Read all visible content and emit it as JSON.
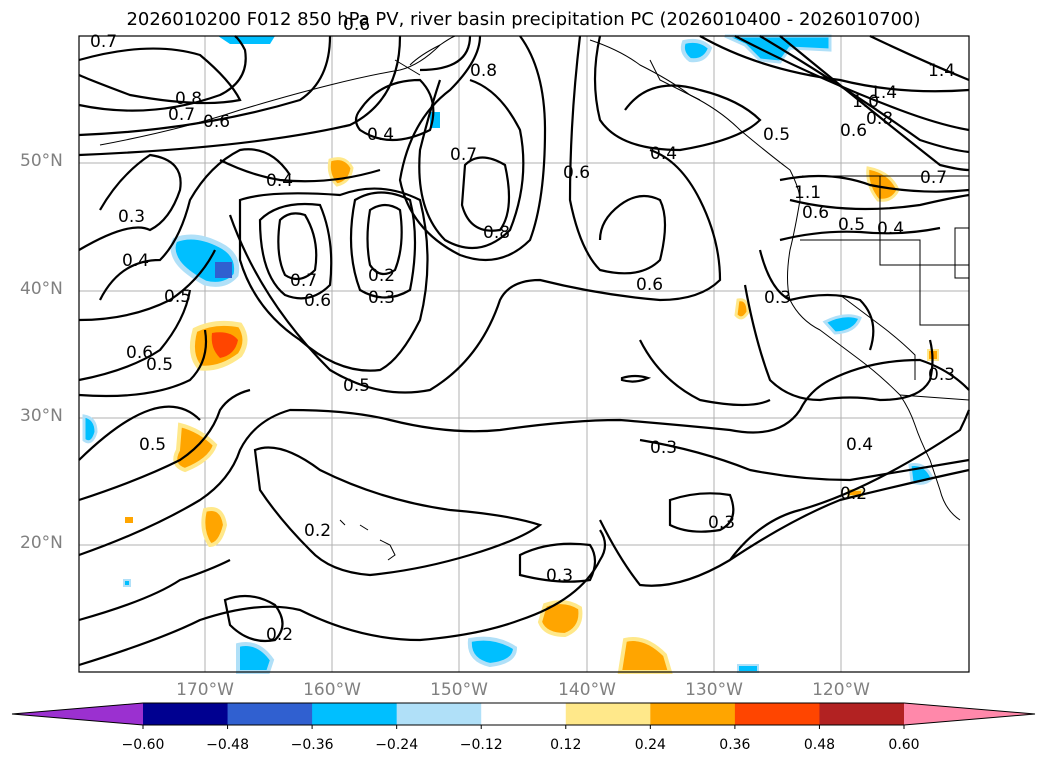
{
  "title": "2026010200 F012 850 hPa PV, river basin precipitation PC (2026010400 - 2026010700)",
  "lat_labels": [
    "50°N",
    "40°N",
    "30°N",
    "20°N"
  ],
  "lon_labels": [
    "170°W",
    "160°W",
    "150°W",
    "140°W",
    "130°W",
    "120°W"
  ],
  "colorbar": {
    "ticks": [
      "−0.60",
      "−0.48",
      "−0.36",
      "−0.24",
      "−0.12",
      "0.12",
      "0.24",
      "0.36",
      "0.48",
      "0.60"
    ],
    "colors": [
      "#9b30d0",
      "#000090",
      "#3060d0",
      "#00bfff",
      "#b0e0f8",
      "#ffffff",
      "#ffe88a",
      "#ffa500",
      "#ff4500",
      "#b22222",
      "#ff88aa"
    ]
  },
  "contour_labels": [
    "0.7",
    "0.8",
    "0.7",
    "0.6",
    "0.4",
    "0.4",
    "0.8",
    "0.7",
    "0.6",
    "0.8",
    "0.4",
    "0.6",
    "0.5",
    "1.4",
    "1.4",
    "1.0",
    "0.8",
    "0.6",
    "0.7",
    "1.1",
    "0.6",
    "0.5",
    "0.4",
    "0.3",
    "0.4",
    "0.5",
    "0.6",
    "0.5",
    "0.7",
    "0.6",
    "0.2",
    "0.3",
    "0.6",
    "0.3",
    "0.5",
    "0.5",
    "0.3",
    "0.4",
    "0.2",
    "0.2",
    "0.3",
    "0.3",
    "0.2",
    "0.3"
  ]
}
